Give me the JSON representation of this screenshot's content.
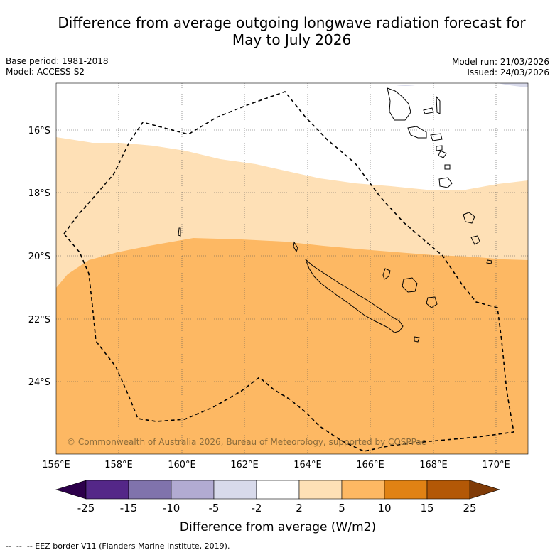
{
  "title": {
    "line1": "Difference from average outgoing longwave radiation forecast for",
    "line2": "May to July 2026"
  },
  "meta": {
    "base_period": "Base period: 1981-2018",
    "model": "Model: ACCESS-S2",
    "model_run": "Model run: 21/03/2026",
    "issued": "Issued: 24/03/2026"
  },
  "map": {
    "lat_labels": [
      "16°S",
      "18°S",
      "20°S",
      "22°S",
      "24°S"
    ],
    "lon_labels": [
      "156°E",
      "158°E",
      "160°E",
      "162°E",
      "164°E",
      "166°E",
      "168°E",
      "170°E"
    ],
    "copyright": "© Commonwealth of Australia 2026, Bureau of Meteorology, supported by COSPPac",
    "fill_colors": {
      "near_average": "#ffffff",
      "light_positive": "#fee0b6",
      "medium_positive": "#fdb863",
      "slight_negative": "#d8daeb"
    }
  },
  "colorbar": {
    "title": "Difference from average (W/m2)",
    "ticks": [
      "-25",
      "-15",
      "-10",
      "-5",
      "-2",
      "2",
      "5",
      "10",
      "15",
      "25"
    ],
    "colors": [
      "#542788",
      "#8073ac",
      "#b2abd2",
      "#d8daeb",
      "#ffffff",
      "#fee0b6",
      "#fdb863",
      "#e08214",
      "#b35806"
    ],
    "low_extend_color": "#2d004b",
    "high_extend_color": "#7f3b08"
  },
  "legend": {
    "eez_label": "-- EEZ border V11 (Flanders Marine Institute, 2019)."
  }
}
